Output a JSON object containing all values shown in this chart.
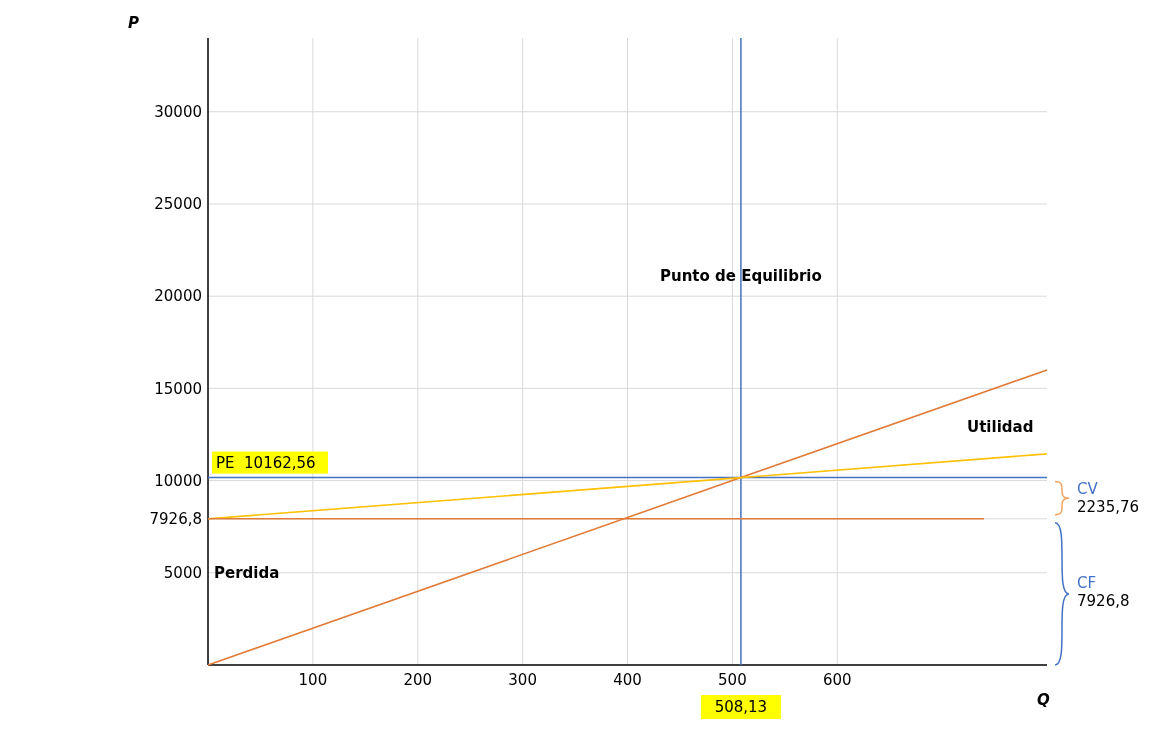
{
  "chart_data": {
    "type": "line",
    "xlabel": "Q",
    "ylabel": "P",
    "x": [
      0,
      508.13,
      800
    ],
    "series": [
      {
        "color": "#e07b39",
        "values": [
          0,
          10162.56,
          16000
        ]
      },
      {
        "color": "#ffc000",
        "values": [
          7926.8,
          10162.56,
          11446.8
        ]
      },
      {
        "color": "#e07b39",
        "x": [
          0,
          740
        ],
        "values": [
          7926.8,
          7926.8
        ]
      }
    ],
    "xlim": [
      0,
      800
    ],
    "xticks": [
      100,
      200,
      300,
      400,
      500,
      600
    ],
    "ylim": [
      0,
      34000
    ],
    "yticks": [
      5000,
      {
        "value": 7926.8,
        "label": "7926,8"
      },
      10000,
      15000,
      20000,
      25000,
      30000
    ],
    "grid": true,
    "marker": "none",
    "line_style": "solid",
    "ref_lines": [
      {
        "axis": "y",
        "value": 10162.56,
        "label": "PE  10162,56",
        "color": "#4472c4"
      },
      {
        "axis": "x",
        "value": 508.13,
        "label": "508,13",
        "color": "#4472c4"
      }
    ],
    "annotations": [
      {
        "text": "Punto de Equilibrio",
        "x": 508.13,
        "y": 20800
      },
      "Utilidad",
      "Perdida",
      "CV",
      "2235,76",
      "CF",
      "7926,8"
    ]
  }
}
